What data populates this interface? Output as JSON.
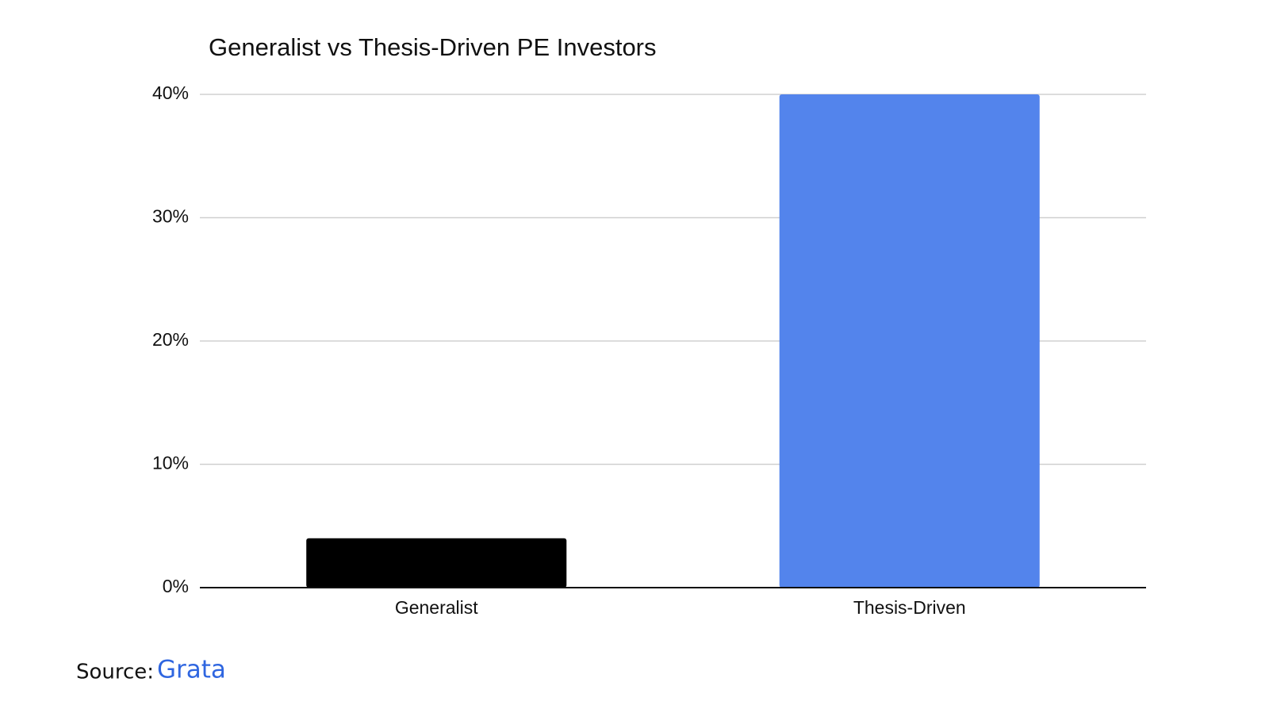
{
  "chart_data": {
    "type": "bar",
    "title": "Generalist vs Thesis-Driven PE Investors",
    "categories": [
      "Generalist",
      "Thesis-Driven"
    ],
    "values": [
      4,
      40
    ],
    "colors": [
      "#000000",
      "#5384ec"
    ],
    "ylim": [
      0,
      40
    ],
    "yticks": [
      {
        "value": 0,
        "label": "0%"
      },
      {
        "value": 10,
        "label": "10%"
      },
      {
        "value": 20,
        "label": "20%"
      },
      {
        "value": 30,
        "label": "30%"
      },
      {
        "value": 40,
        "label": "40%"
      }
    ],
    "grid": true
  },
  "source": {
    "label": "Source:",
    "link": "Grata"
  }
}
